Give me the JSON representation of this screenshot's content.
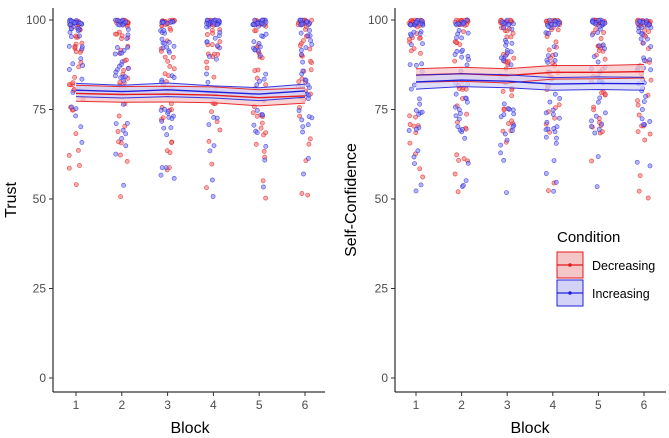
{
  "legend": {
    "title": "Condition",
    "entries": [
      {
        "label": "Decreasing",
        "color": "#E41A1C",
        "fill": "#F4C6C7"
      },
      {
        "label": "Increasing",
        "color": "#2222DD",
        "fill": "#D3D3F7"
      }
    ]
  },
  "chart_data": [
    {
      "type": "scatter",
      "subtype": "jittered scatter with mean lines and confidence ribbons",
      "xlabel": "Block",
      "ylabel": "Trust",
      "x": [
        1,
        2,
        3,
        4,
        5,
        6
      ],
      "x_tick_labels": [
        "1",
        "2",
        "3",
        "4",
        "5",
        "6"
      ],
      "y_ticks": [
        0,
        25,
        50,
        75,
        100
      ],
      "ylim": [
        0,
        100
      ],
      "grid": false,
      "series": [
        {
          "name": "Decreasing",
          "color": "#E41A1C",
          "mean": [
            79.5,
            79.2,
            79.3,
            79.0,
            78.3,
            78.8
          ],
          "lower": [
            77.3,
            77.0,
            77.1,
            76.9,
            76.0,
            76.8
          ],
          "upper": [
            81.8,
            81.4,
            81.5,
            81.3,
            80.5,
            81.0
          ]
        },
        {
          "name": "Increasing",
          "color": "#2222DD",
          "mean": [
            80.4,
            80.0,
            80.5,
            79.9,
            79.3,
            80.2
          ],
          "lower": [
            78.6,
            78.2,
            78.6,
            78.2,
            77.5,
            78.4
          ],
          "upper": [
            82.3,
            81.8,
            82.4,
            81.6,
            81.1,
            82.1
          ]
        }
      ]
    },
    {
      "type": "scatter",
      "subtype": "jittered scatter with mean lines and confidence ribbons",
      "xlabel": "Block",
      "ylabel": "Self-Confidence",
      "x": [
        1,
        2,
        3,
        4,
        5,
        6
      ],
      "x_tick_labels": [
        "1",
        "2",
        "3",
        "4",
        "5",
        "6"
      ],
      "y_ticks": [
        0,
        25,
        50,
        75,
        100
      ],
      "ylim": [
        0,
        100
      ],
      "grid": false,
      "series": [
        {
          "name": "Decreasing",
          "color": "#E41A1C",
          "mean": [
            84.6,
            85.0,
            84.5,
            85.4,
            85.4,
            85.6
          ],
          "lower": [
            82.6,
            82.9,
            82.4,
            83.5,
            83.6,
            83.8
          ],
          "upper": [
            86.4,
            86.8,
            86.4,
            87.3,
            87.3,
            87.6
          ]
        },
        {
          "name": "Increasing",
          "color": "#2222DD",
          "mean": [
            82.7,
            83.2,
            82.9,
            82.1,
            82.3,
            82.2
          ],
          "lower": [
            80.7,
            81.4,
            81.1,
            80.4,
            80.6,
            80.4
          ],
          "upper": [
            84.6,
            85.0,
            84.7,
            83.9,
            84.1,
            84.0
          ]
        }
      ]
    }
  ]
}
